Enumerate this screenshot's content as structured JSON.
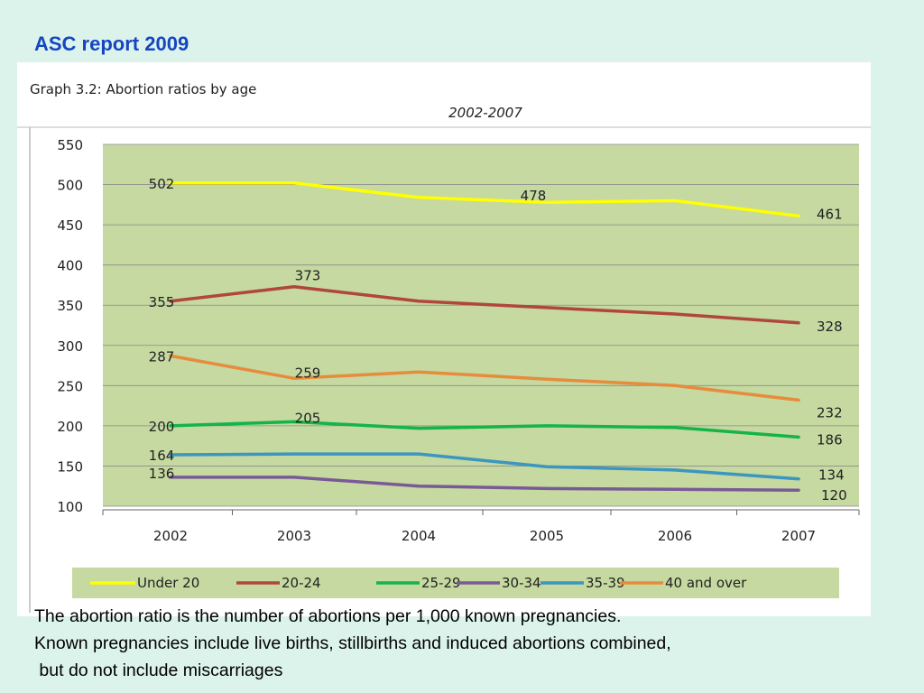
{
  "slide_title": "ASC report 2009",
  "caption": [
    "The abortion ratio is the number of abortions per 1,000 known pregnancies.",
    "Known pregnancies include live births, stillbirths and induced abortions combined,",
    " but do not include miscarriages"
  ],
  "colors": {
    "background": "#dcf3ec",
    "plot_area": "#c5d9a1",
    "title": "#1545c2"
  },
  "chart_data": {
    "type": "line",
    "title": "Graph 3.2: Abortion ratios by age",
    "subtitle": "2002-2007",
    "x": [
      "2002",
      "2003",
      "2004",
      "2005",
      "2006",
      "2007"
    ],
    "ylim": [
      100,
      550
    ],
    "yticks": [
      550,
      500,
      450,
      400,
      350,
      300,
      250,
      200,
      150,
      100
    ],
    "grid": true,
    "legend_position": "bottom",
    "series": [
      {
        "name": "Under 20",
        "color": "#ffff00",
        "values": [
          502,
          502,
          484,
          478,
          480,
          461
        ],
        "labels": [
          {
            "index": 0,
            "text": "502"
          },
          {
            "index": 3,
            "text": "478"
          },
          {
            "index": 5,
            "text": "461"
          }
        ]
      },
      {
        "name": "20-24",
        "color": "#b0463c",
        "values": [
          355,
          373,
          355,
          347,
          339,
          328
        ],
        "labels": [
          {
            "index": 0,
            "text": "355"
          },
          {
            "index": 1,
            "text": "373"
          },
          {
            "index": 5,
            "text": "328"
          }
        ]
      },
      {
        "name": "25-29",
        "color": "#14b446",
        "values": [
          200,
          205,
          197,
          200,
          198,
          186
        ],
        "labels": [
          {
            "index": 0,
            "text": "200"
          },
          {
            "index": 1,
            "text": "205"
          },
          {
            "index": 5,
            "text": "186"
          }
        ]
      },
      {
        "name": "30-34",
        "color": "#7a5a96",
        "values": [
          136,
          136,
          125,
          122,
          121,
          120
        ],
        "labels": [
          {
            "index": 0,
            "text": "136"
          },
          {
            "index": 5,
            "text": "120"
          }
        ]
      },
      {
        "name": "35-39",
        "color": "#3c96be",
        "values": [
          164,
          165,
          165,
          149,
          145,
          134
        ],
        "labels": [
          {
            "index": 0,
            "text": "164"
          },
          {
            "index": 5,
            "text": "134"
          }
        ]
      },
      {
        "name": "40 and over",
        "color": "#e68c3c",
        "values": [
          287,
          259,
          267,
          258,
          250,
          232
        ],
        "labels": [
          {
            "index": 0,
            "text": "287"
          },
          {
            "index": 1,
            "text": "259"
          },
          {
            "index": 5,
            "text": "232"
          }
        ]
      }
    ]
  }
}
